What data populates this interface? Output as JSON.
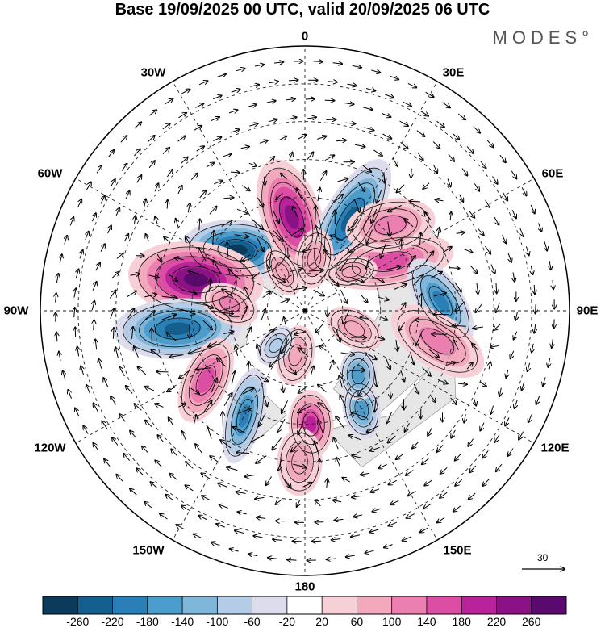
{
  "header": {
    "title": "Base 19/09/2025 00 UTC, valid 20/09/2025 06 UTC",
    "brand": "MODES°"
  },
  "map": {
    "projection": "north-polar-stereographic",
    "longitude_labels": {
      "lon_0": "0",
      "lon_30e": "30E",
      "lon_60e": "60E",
      "lon_90e": "90E",
      "lon_120e": "120E",
      "lon_150e": "150E",
      "lon_180": "180",
      "lon_150w": "150W",
      "lon_120w": "120W",
      "lon_90w": "90W",
      "lon_60w": "60W",
      "lon_30w": "30W"
    },
    "reference_vector": {
      "label": "30",
      "magnitude": 30
    },
    "colorbar": {
      "ticks": [
        "-260",
        "-220",
        "-180",
        "-140",
        "-100",
        "-60",
        "-20",
        "20",
        "60",
        "100",
        "140",
        "180",
        "220",
        "260"
      ],
      "colors": [
        "#0b3a5a",
        "#145f8e",
        "#2a7fb6",
        "#4c9ccc",
        "#7fb6da",
        "#b4cce6",
        "#dcdcec",
        "#ffffff",
        "#f6d0d6",
        "#f2a9bd",
        "#ea7fb0",
        "#dc4ea3",
        "#b8239a",
        "#8b1284",
        "#5a0a6c"
      ]
    },
    "anomaly_cells": [
      {
        "name": "atlantic-low",
        "lon": -48,
        "colat": 24,
        "value": -260,
        "ra": 15,
        "rb": 8,
        "rot": -38
      },
      {
        "name": "north-atlantic-ridge",
        "lon": -8,
        "colat": 25,
        "value": 240,
        "ra": 16,
        "rb": 8,
        "rot": -12
      },
      {
        "name": "europe-low",
        "lon": 26,
        "colat": 27,
        "value": -220,
        "ra": 18,
        "rb": 7,
        "rot": 5
      },
      {
        "name": "siberia-ridge",
        "lon": 60,
        "colat": 26,
        "value": 140,
        "ra": 17,
        "rb": 7,
        "rot": 20
      },
      {
        "name": "west-siberia-ridge",
        "lon": 45,
        "colat": 32,
        "value": 120,
        "ra": 12,
        "rb": 7,
        "rot": 35
      },
      {
        "name": "central-asia-low",
        "lon": 86,
        "colat": 36,
        "value": -200,
        "ra": 13,
        "rb": 6,
        "rot": 60
      },
      {
        "name": "canada-ridge",
        "lon": -74,
        "colat": 30,
        "value": 260,
        "ra": 18,
        "rb": 10,
        "rot": -10
      },
      {
        "name": "pacific-northwest-low",
        "lon": -98,
        "colat": 34,
        "value": -240,
        "ra": 17,
        "rb": 8,
        "rot": 5
      },
      {
        "name": "east-asia-ridge",
        "lon": 103,
        "colat": 36,
        "value": 100,
        "ra": 14,
        "rb": 7,
        "rot": 20
      },
      {
        "name": "gulf-alaska-ridge",
        "lon": -125,
        "colat": 32,
        "value": 160,
        "ra": 12,
        "rb": 6,
        "rot": -30
      },
      {
        "name": "aleutian-low",
        "lon": -150,
        "colat": 32,
        "value": -200,
        "ra": 13,
        "rb": 5,
        "rot": -15
      },
      {
        "name": "bering-ridge",
        "lon": 177,
        "colat": 30,
        "value": 180,
        "ra": 9,
        "rb": 6,
        "rot": 0
      },
      {
        "name": "kamchatka-low",
        "lon": 150,
        "colat": 30,
        "value": -140,
        "ra": 8,
        "rb": 5,
        "rot": 20
      },
      {
        "name": "okhotsk-low",
        "lon": 140,
        "colat": 22,
        "value": -140,
        "ra": 7,
        "rb": 5,
        "rot": 40
      },
      {
        "name": "arctic-ridge",
        "lon": -168,
        "colat": 12,
        "value": 80,
        "ra": 8,
        "rb": 5,
        "rot": 0
      },
      {
        "name": "arctic-low",
        "lon": -140,
        "colat": 12,
        "value": -60,
        "ra": 6,
        "rb": 4,
        "rot": 0
      },
      {
        "name": "laptev-ridge",
        "lon": 110,
        "colat": 14,
        "value": 60,
        "ra": 8,
        "rb": 5,
        "rot": 10
      },
      {
        "name": "barents-ridge",
        "lon": 50,
        "colat": 16,
        "value": 60,
        "ra": 7,
        "rb": 4,
        "rot": 30
      },
      {
        "name": "greenland-ridge",
        "lon": -30,
        "colat": 12,
        "value": 80,
        "ra": 7,
        "rb": 4,
        "rot": 0
      },
      {
        "name": "west-pacific-ridge",
        "lon": -178,
        "colat": 40,
        "value": 80,
        "ra": 9,
        "rb": 6,
        "rot": 0
      },
      {
        "name": "hudson-ridge",
        "lon": -85,
        "colat": 20,
        "value": 100,
        "ra": 8,
        "rb": 5,
        "rot": 20
      },
      {
        "name": "scandinavia-ridge",
        "lon": 10,
        "colat": 14,
        "value": 80,
        "ra": 8,
        "rb": 5,
        "rot": 0
      }
    ]
  }
}
